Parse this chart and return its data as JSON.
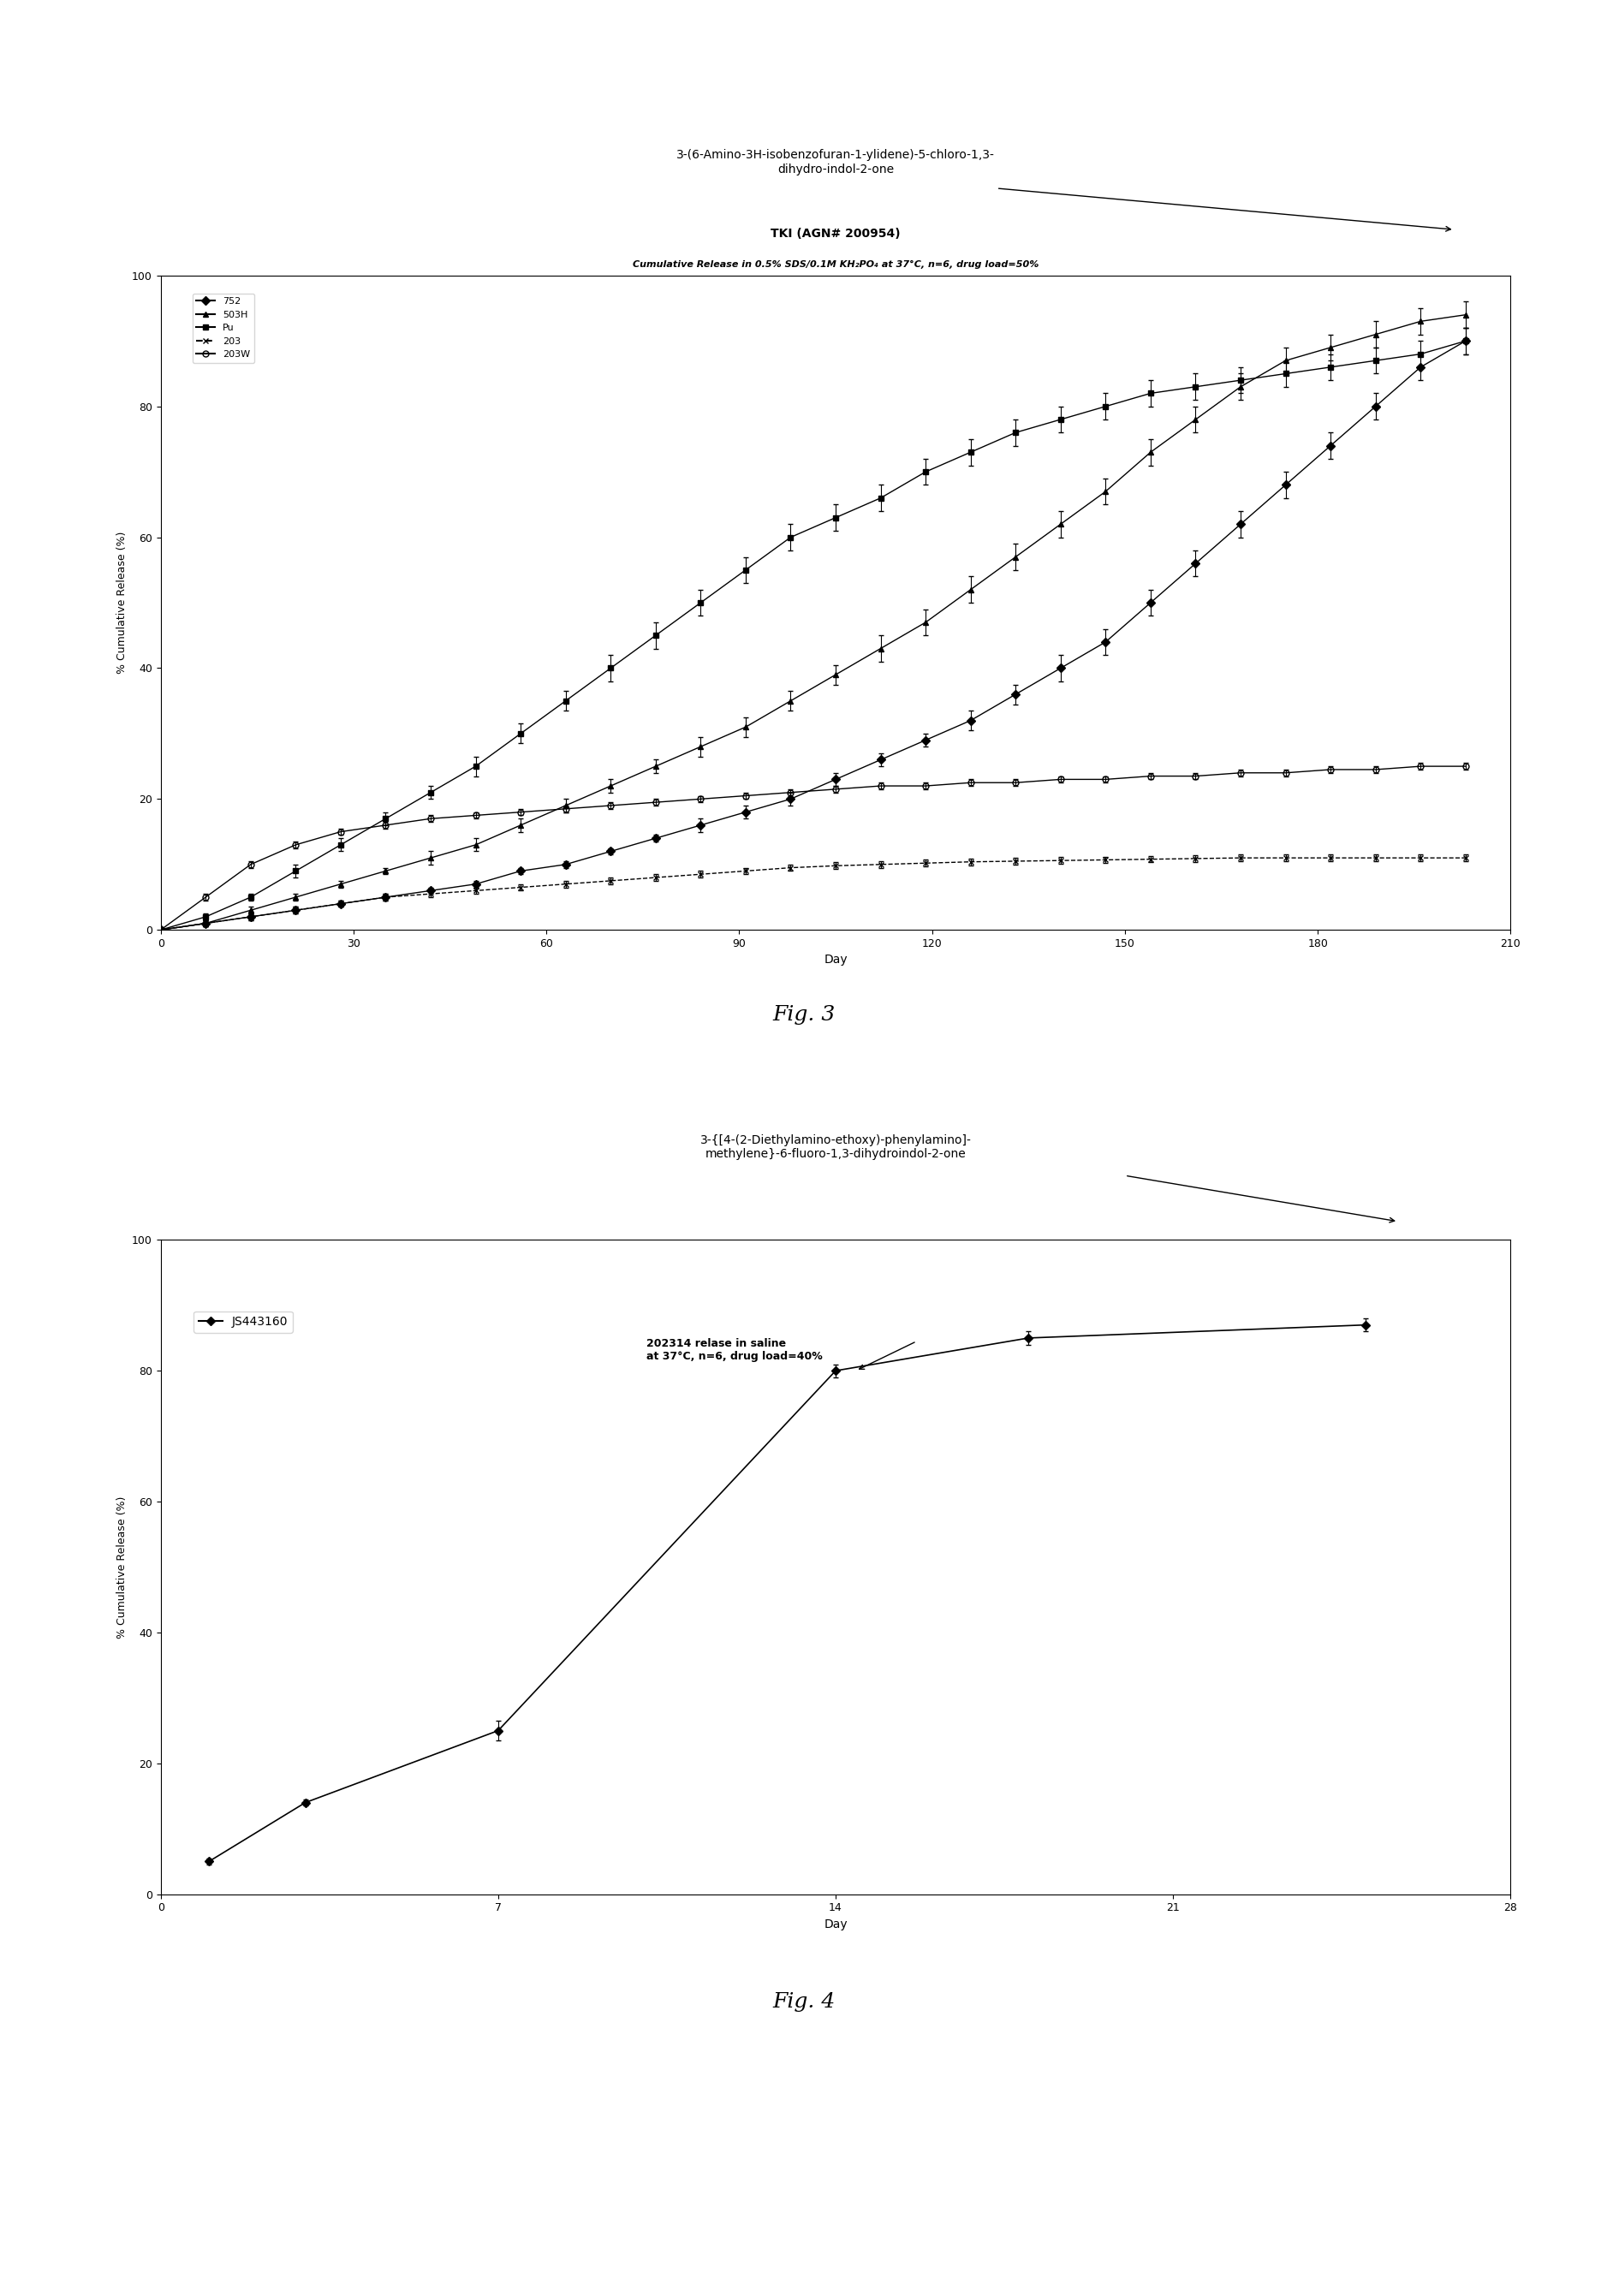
{
  "fig3": {
    "title1": "TKI (AGN# 200954)",
    "title2": "Cumulative Release in 0.5% SDS/0.1M KH₂PO₄ at 37°C, n=6, drug load=50%",
    "xlabel": "Day",
    "ylabel": "% Cumulative Release (%)",
    "xlim": [
      0,
      210
    ],
    "ylim": [
      0,
      100
    ],
    "xticks": [
      0,
      30,
      60,
      90,
      120,
      150,
      180,
      210
    ],
    "yticks": [
      0,
      20,
      40,
      60,
      80,
      100
    ],
    "compound_label": "3-(6-Amino-3H-isobenzofuran-1-ylidene)-5-chloro-1,3-\ndihydro-indol-2-one",
    "series": {
      "752": {
        "x": [
          0,
          7,
          14,
          21,
          28,
          35,
          42,
          49,
          56,
          63,
          70,
          77,
          84,
          91,
          98,
          105,
          112,
          119,
          126,
          133,
          140,
          147,
          154,
          161,
          168,
          175,
          182,
          189,
          196,
          203
        ],
        "y": [
          0,
          1,
          2,
          3,
          4,
          5,
          6,
          7,
          9,
          10,
          12,
          14,
          16,
          18,
          20,
          23,
          26,
          29,
          32,
          36,
          40,
          44,
          50,
          56,
          62,
          68,
          74,
          80,
          86,
          90
        ],
        "yerr": [
          0,
          0.5,
          0.5,
          0.5,
          0.5,
          0.5,
          0.5,
          0.5,
          0.5,
          0.5,
          0.5,
          0.5,
          1,
          1,
          1,
          1,
          1,
          1,
          1.5,
          1.5,
          2,
          2,
          2,
          2,
          2,
          2,
          2,
          2,
          2,
          2
        ],
        "marker": "D",
        "linestyle": "-",
        "fillstyle": "full"
      },
      "503H": {
        "x": [
          0,
          7,
          14,
          21,
          28,
          35,
          42,
          49,
          56,
          63,
          70,
          77,
          84,
          91,
          98,
          105,
          112,
          119,
          126,
          133,
          140,
          147,
          154,
          161,
          168,
          175,
          182,
          189,
          196,
          203
        ],
        "y": [
          0,
          1,
          3,
          5,
          7,
          9,
          11,
          13,
          16,
          19,
          22,
          25,
          28,
          31,
          35,
          39,
          43,
          47,
          52,
          57,
          62,
          67,
          73,
          78,
          83,
          87,
          89,
          91,
          93,
          94
        ],
        "yerr": [
          0,
          0.5,
          0.5,
          0.5,
          0.5,
          0.5,
          1,
          1,
          1,
          1,
          1,
          1,
          1.5,
          1.5,
          1.5,
          1.5,
          2,
          2,
          2,
          2,
          2,
          2,
          2,
          2,
          2,
          2,
          2,
          2,
          2,
          2
        ],
        "marker": "^",
        "linestyle": "-",
        "fillstyle": "full"
      },
      "Pu": {
        "x": [
          0,
          7,
          14,
          21,
          28,
          35,
          42,
          49,
          56,
          63,
          70,
          77,
          84,
          91,
          98,
          105,
          112,
          119,
          126,
          133,
          140,
          147,
          154,
          161,
          168,
          175,
          182,
          189,
          196,
          203
        ],
        "y": [
          0,
          2,
          5,
          9,
          13,
          17,
          21,
          25,
          30,
          35,
          40,
          45,
          50,
          55,
          60,
          63,
          66,
          70,
          73,
          76,
          78,
          80,
          82,
          83,
          84,
          85,
          86,
          87,
          88,
          90
        ],
        "yerr": [
          0,
          0.5,
          0.5,
          1,
          1,
          1,
          1,
          1.5,
          1.5,
          1.5,
          2,
          2,
          2,
          2,
          2,
          2,
          2,
          2,
          2,
          2,
          2,
          2,
          2,
          2,
          2,
          2,
          2,
          2,
          2,
          2
        ],
        "marker": "s",
        "linestyle": "-",
        "fillstyle": "full"
      },
      "203": {
        "x": [
          0,
          7,
          14,
          21,
          28,
          35,
          42,
          49,
          56,
          63,
          70,
          77,
          84,
          91,
          98,
          105,
          112,
          119,
          126,
          133,
          140,
          147,
          154,
          161,
          168,
          175,
          182,
          189,
          196,
          203
        ],
        "y": [
          0,
          1,
          2,
          3,
          4,
          5,
          5.5,
          6,
          6.5,
          7,
          7.5,
          8,
          8.5,
          9,
          9.5,
          9.8,
          10,
          10.2,
          10.4,
          10.5,
          10.6,
          10.7,
          10.8,
          10.9,
          11,
          11,
          11,
          11,
          11,
          11
        ],
        "yerr": [
          0,
          0.5,
          0.5,
          0.5,
          0.5,
          0.5,
          0.5,
          0.5,
          0.5,
          0.5,
          0.5,
          0.5,
          0.5,
          0.5,
          0.5,
          0.5,
          0.5,
          0.5,
          0.5,
          0.5,
          0.5,
          0.5,
          0.5,
          0.5,
          0.5,
          0.5,
          0.5,
          0.5,
          0.5,
          0.5
        ],
        "marker": "x",
        "linestyle": "--",
        "fillstyle": "full"
      },
      "203W": {
        "x": [
          0,
          7,
          14,
          21,
          28,
          35,
          42,
          49,
          56,
          63,
          70,
          77,
          84,
          91,
          98,
          105,
          112,
          119,
          126,
          133,
          140,
          147,
          154,
          161,
          168,
          175,
          182,
          189,
          196,
          203
        ],
        "y": [
          0,
          5,
          10,
          13,
          15,
          16,
          17,
          17.5,
          18,
          18.5,
          19,
          19.5,
          20,
          20.5,
          21,
          21.5,
          22,
          22,
          22.5,
          22.5,
          23,
          23,
          23.5,
          23.5,
          24,
          24,
          24.5,
          24.5,
          25,
          25
        ],
        "yerr": [
          0,
          0.5,
          0.5,
          0.5,
          0.5,
          0.5,
          0.5,
          0.5,
          0.5,
          0.5,
          0.5,
          0.5,
          0.5,
          0.5,
          0.5,
          0.5,
          0.5,
          0.5,
          0.5,
          0.5,
          0.5,
          0.5,
          0.5,
          0.5,
          0.5,
          0.5,
          0.5,
          0.5,
          0.5,
          0.5
        ],
        "marker": "o",
        "linestyle": "-",
        "fillstyle": "none"
      }
    }
  },
  "fig4": {
    "title1": "202314 relase in saline",
    "title2": "at 37°C, n=6, drug load=40%",
    "xlabel": "Day",
    "ylabel": "% Cumulative Release (%)",
    "xlim": [
      0,
      28
    ],
    "ylim": [
      0,
      100
    ],
    "xticks": [
      0,
      7,
      14,
      21,
      28
    ],
    "yticks": [
      0,
      20,
      40,
      60,
      80,
      100
    ],
    "compound_label": "3-{[4-(2-Diethylamino-ethoxy)-phenylamino]-\nmethylene}-6-fluoro-1,3-dihydroindol-2-one",
    "series": {
      "JS443160": {
        "x": [
          1,
          3,
          7,
          14,
          18,
          25
        ],
        "y": [
          5,
          14,
          25,
          80,
          85,
          87
        ],
        "yerr": [
          0.5,
          0.5,
          1.5,
          1,
          1,
          1
        ],
        "marker": "D",
        "linestyle": "-",
        "fillstyle": "full"
      }
    }
  },
  "fig3_label": "Fig. 3",
  "fig4_label": "Fig. 4"
}
